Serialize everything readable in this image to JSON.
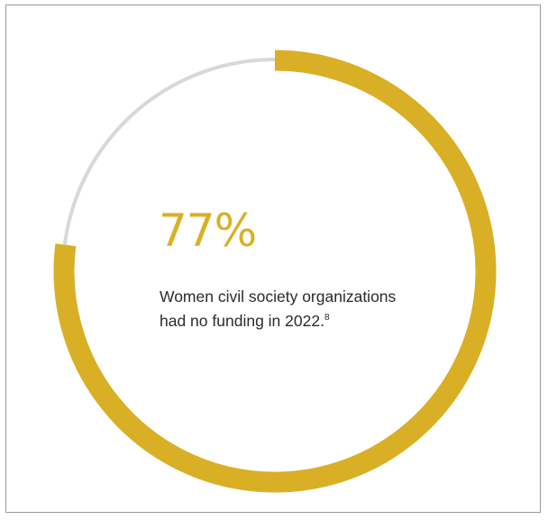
{
  "chart_data": {
    "type": "pie",
    "value_percent": 77,
    "center_label": "77%",
    "caption": "Women civil society organizations had no funding in 2022.",
    "caption_lines": [
      "Women civil society organizations",
      "had no funding in 2022."
    ],
    "footnote_marker": "8",
    "colors": {
      "filled": "#d9af26",
      "remaining": "#d8d8d8",
      "value_text": "#d9af26",
      "caption_text": "#2b2b2b"
    }
  }
}
